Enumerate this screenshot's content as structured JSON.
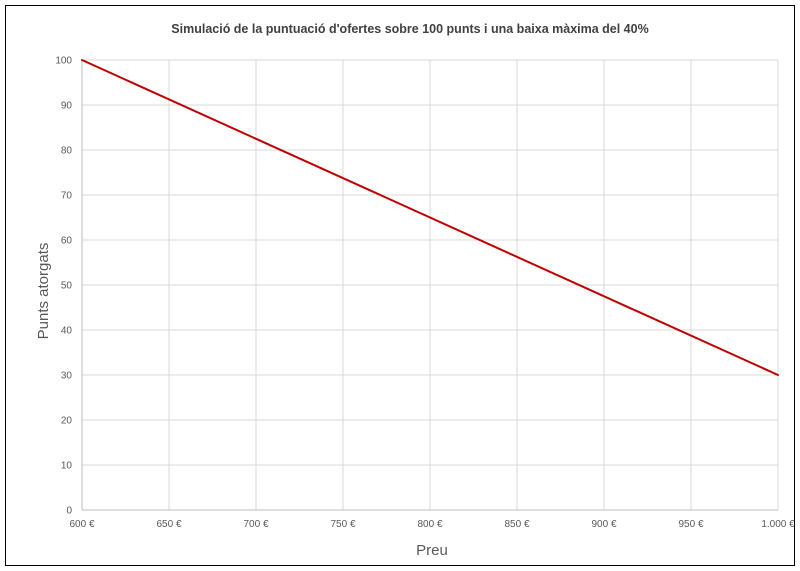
{
  "chart_data": {
    "type": "line",
    "title": "Simulació de la puntuació d'ofertes sobre 100 punts i una baixa màxima del 40%",
    "xlabel": "Preu",
    "ylabel": "Punts atorgats",
    "xlim": [
      600,
      1000
    ],
    "ylim": [
      0,
      100
    ],
    "x_ticks": [
      600,
      650,
      700,
      750,
      800,
      850,
      900,
      950,
      1000
    ],
    "x_tick_labels": [
      "600 €",
      "650 €",
      "700 €",
      "750 €",
      "800 €",
      "850 €",
      "900 €",
      "950 €",
      "1.000 €"
    ],
    "y_ticks": [
      0,
      10,
      20,
      30,
      40,
      50,
      60,
      70,
      80,
      90,
      100
    ],
    "y_tick_labels": [
      "0",
      "10",
      "20",
      "30",
      "40",
      "50",
      "60",
      "70",
      "80",
      "90",
      "100"
    ],
    "grid": true,
    "legend": "none",
    "series": [
      {
        "color": "#c00000",
        "x": [
          600,
          1000
        ],
        "y": [
          100,
          30
        ]
      }
    ]
  }
}
